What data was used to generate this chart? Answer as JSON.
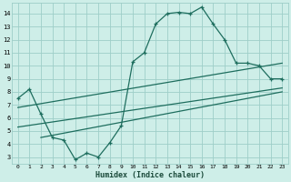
{
  "xlabel": "Humidex (Indice chaleur)",
  "bg_color": "#ceeee8",
  "grid_color": "#9ecec8",
  "line_color": "#1e6e5e",
  "xlim": [
    -0.5,
    23.5
  ],
  "ylim": [
    2.5,
    14.8
  ],
  "xticks": [
    0,
    1,
    2,
    3,
    4,
    5,
    6,
    7,
    8,
    9,
    10,
    11,
    12,
    13,
    14,
    15,
    16,
    17,
    18,
    19,
    20,
    21,
    22,
    23
  ],
  "yticks": [
    3,
    4,
    5,
    6,
    7,
    8,
    9,
    10,
    11,
    12,
    13,
    14
  ],
  "curve1_x": [
    0,
    1,
    2,
    3,
    4,
    5,
    6,
    7,
    8,
    9,
    10,
    11,
    12,
    13,
    14,
    15,
    16,
    17,
    18,
    19,
    20,
    21,
    22,
    23
  ],
  "curve1_y": [
    7.5,
    8.2,
    6.3,
    4.5,
    4.3,
    2.8,
    3.3,
    3.0,
    4.1,
    5.4,
    10.3,
    11.0,
    13.2,
    14.0,
    14.1,
    14.0,
    14.5,
    13.2,
    12.0,
    10.2,
    10.2,
    10.0,
    9.0,
    9.0
  ],
  "line1_x": [
    0,
    23
  ],
  "line1_y": [
    6.8,
    10.2
  ],
  "line2_x": [
    0,
    23
  ],
  "line2_y": [
    5.3,
    8.3
  ],
  "line3_x": [
    2,
    23
  ],
  "line3_y": [
    4.5,
    8.0
  ]
}
